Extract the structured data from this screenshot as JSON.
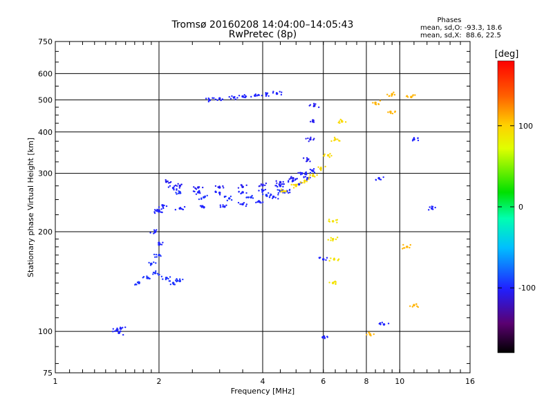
{
  "chart_data": {
    "type": "scatter",
    "title": "Tromsø 20160208 14:04:00–14:05:43",
    "subtitle": "RwPretec (8p)",
    "xlabel": "Frequency [MHz]",
    "ylabel": "Stationary phase Virtual Height [km]",
    "x_scale": "log",
    "y_scale": "log",
    "xlim": [
      1,
      16
    ],
    "ylim": [
      75,
      750
    ],
    "x_ticks": [
      "1",
      "2",
      "4",
      "6",
      "8",
      "10",
      "16"
    ],
    "y_ticks": [
      "75",
      "100",
      "200",
      "300",
      "400",
      "500",
      "600",
      "750"
    ],
    "grid": true,
    "stats": {
      "header": "Phases",
      "line1": "mean, sd,O: -93.3, 18.6",
      "line2": "mean, sd,X:  88.6, 22.5"
    },
    "colorbar": {
      "unit": "[deg]",
      "range": [
        -180,
        180
      ],
      "ticks": [
        "100",
        "0",
        "-100"
      ],
      "tick_values": [
        100,
        0,
        -100
      ]
    },
    "series": [
      {
        "values": [
          [
            1.51,
            101
          ],
          [
            1.53,
            99
          ],
          [
            1.55,
            102
          ]
        ],
        "phase": -100
      },
      {
        "values": [
          [
            1.75,
            140
          ],
          [
            1.85,
            145
          ],
          [
            1.9,
            160
          ],
          [
            1.95,
            150
          ],
          [
            2.0,
            170
          ],
          [
            2.1,
            145
          ],
          [
            2.2,
            140
          ],
          [
            2.3,
            142
          ]
        ],
        "phase": -95
      },
      {
        "values": [
          [
            1.95,
            200
          ],
          [
            2.0,
            230
          ],
          [
            2.05,
            240
          ],
          [
            2.0,
            185
          ]
        ],
        "phase": -100
      },
      {
        "values": [
          [
            2.1,
            283
          ],
          [
            2.3,
            275
          ],
          [
            2.6,
            272
          ],
          [
            3.0,
            272
          ],
          [
            3.5,
            273
          ],
          [
            4.0,
            276
          ],
          [
            4.5,
            282
          ],
          [
            4.9,
            290
          ],
          [
            5.2,
            300
          ],
          [
            5.4,
            330
          ],
          [
            5.5,
            380
          ],
          [
            5.6,
            430
          ],
          [
            5.65,
            480
          ]
        ],
        "phase": -105
      },
      {
        "values": [
          [
            2.2,
            271
          ],
          [
            2.6,
            263
          ],
          [
            3.0,
            262
          ],
          [
            3.5,
            263
          ],
          [
            4.0,
            266
          ],
          [
            4.5,
            275
          ],
          [
            4.9,
            285
          ],
          [
            5.2,
            300
          ]
        ],
        "phase": -100
      },
      {
        "values": [
          [
            2.3,
            262
          ],
          [
            2.7,
            254
          ],
          [
            3.2,
            252
          ],
          [
            3.7,
            254
          ],
          [
            4.1,
            258
          ],
          [
            4.5,
            265
          ]
        ],
        "phase": -95
      },
      {
        "values": [
          [
            2.0,
            232
          ],
          [
            2.3,
            235
          ],
          [
            2.7,
            237
          ],
          [
            3.1,
            238
          ],
          [
            3.5,
            242
          ],
          [
            3.9,
            247
          ],
          [
            4.3,
            255
          ],
          [
            4.7,
            265
          ],
          [
            5.1,
            278
          ],
          [
            5.4,
            290
          ],
          [
            5.6,
            305
          ]
        ],
        "phase": -100
      },
      {
        "values": [
          [
            2.8,
            500
          ],
          [
            3.0,
            505
          ],
          [
            3.3,
            508
          ],
          [
            3.5,
            512
          ],
          [
            3.8,
            515
          ],
          [
            4.1,
            520
          ],
          [
            4.4,
            522
          ]
        ],
        "phase": -100
      },
      {
        "values": [
          [
            4.6,
            265
          ],
          [
            5.0,
            275
          ],
          [
            5.3,
            285
          ],
          [
            5.6,
            295
          ],
          [
            5.9,
            310
          ],
          [
            6.2,
            340
          ],
          [
            6.5,
            380
          ],
          [
            6.8,
            430
          ]
        ],
        "phase": 95
      },
      {
        "values": [
          [
            8.5,
            490
          ],
          [
            9.5,
            520
          ],
          [
            10.8,
            510
          ],
          [
            9.4,
            460
          ],
          [
            10.5,
            180
          ],
          [
            11.0,
            120
          ],
          [
            8.2,
            98
          ]
        ],
        "phase": 110
      },
      {
        "values": [
          [
            6.4,
            215
          ],
          [
            6.4,
            190
          ],
          [
            6.45,
            165
          ],
          [
            6.4,
            140
          ]
        ],
        "phase": 90
      },
      {
        "values": [
          [
            11.0,
            380
          ],
          [
            12.4,
            235
          ],
          [
            9.0,
            105
          ],
          [
            8.7,
            290
          ],
          [
            5.98,
            96
          ],
          [
            6.0,
            165
          ]
        ],
        "phase": -100
      }
    ]
  }
}
